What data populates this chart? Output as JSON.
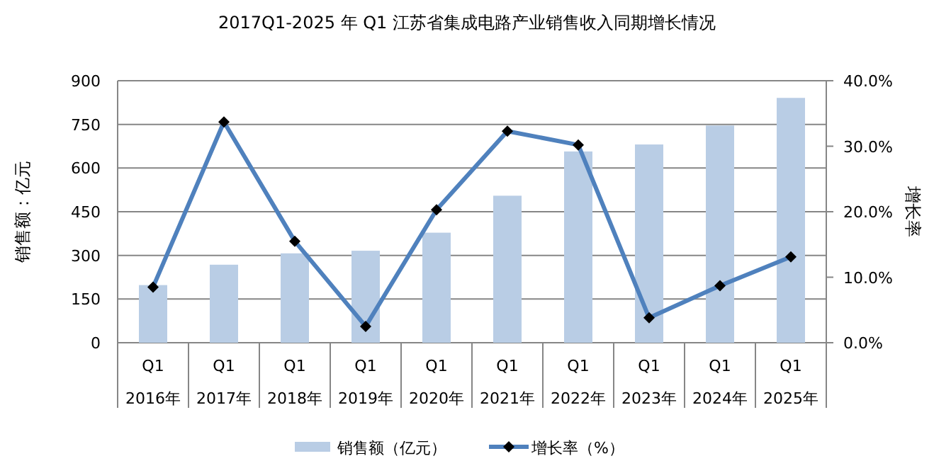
{
  "chart_data": {
    "type": "bar",
    "title": "2017Q1-2025 年 Q1 江苏省集成电路产业销售收入同期增长情况",
    "ylabel": "销售额：亿元",
    "y2label": "增长率",
    "categories": [
      "Q1\n2016年",
      "Q1\n2017年",
      "Q1\n2018年",
      "Q1\n2019年",
      "Q1\n2020年",
      "Q1\n2021年",
      "Q1\n2022年",
      "Q1\n2023年",
      "Q1\n2024年",
      "Q1\n2025年"
    ],
    "series": [
      {
        "name": "销售额（亿元）",
        "color": "#b9cde5",
        "values": [
          198,
          268,
          307,
          316,
          378,
          505,
          657,
          681,
          746,
          841
        ]
      },
      {
        "name": "增长率（%）",
        "type": "line",
        "axis": "y2",
        "color": "#4f81bd",
        "marker": "diamond",
        "values": [
          8.5,
          33.7,
          15.5,
          2.5,
          20.3,
          32.3,
          30.2,
          3.8,
          8.7,
          13.1
        ]
      }
    ],
    "ylim": [
      0,
      900
    ],
    "yticks": [
      0,
      150,
      300,
      450,
      600,
      750,
      900
    ],
    "y2lim": [
      0,
      40
    ],
    "y2ticks": [
      {
        "value": 0,
        "label": "0.0%"
      },
      {
        "value": 10,
        "label": "10.0%"
      },
      {
        "value": 20,
        "label": "20.0%"
      },
      {
        "value": 30,
        "label": "30.0%"
      },
      {
        "value": 40,
        "label": "40.0%"
      }
    ],
    "grid": "y",
    "legend": "bottom"
  }
}
